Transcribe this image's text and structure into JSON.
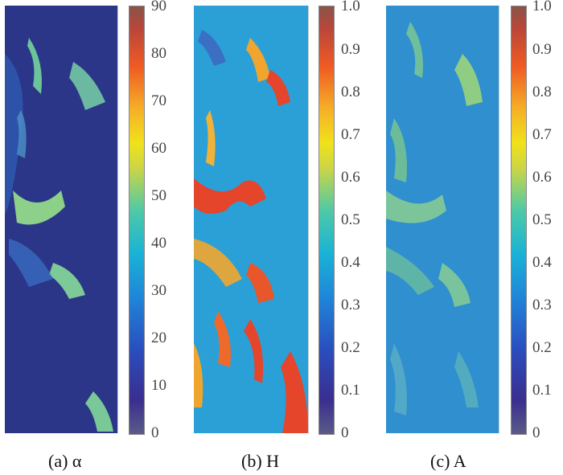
{
  "panels": [
    {
      "caption": "(a) α",
      "ticks": [
        "0",
        "10",
        "20",
        "30",
        "40",
        "50",
        "60",
        "70",
        "80",
        "90"
      ]
    },
    {
      "caption": "(b) H",
      "ticks": [
        "0",
        "0.1",
        "0.2",
        "0.3",
        "0.4",
        "0.5",
        "0.6",
        "0.7",
        "0.8",
        "0.9",
        "1.0"
      ]
    },
    {
      "caption": "(c) A",
      "ticks": [
        "0",
        "0.1",
        "0.2",
        "0.3",
        "0.4",
        "0.5",
        "0.6",
        "0.7",
        "0.8",
        "0.9",
        "1.0"
      ]
    }
  ],
  "colors": {
    "alpha_base": "#2d3a8c",
    "entropy_base": "#2b9fd6",
    "anisotropy_base": "#2f8fce",
    "feature_green": "#7ccf7e",
    "feature_red": "#e4452b",
    "feature_orange": "#f1a62e"
  }
}
